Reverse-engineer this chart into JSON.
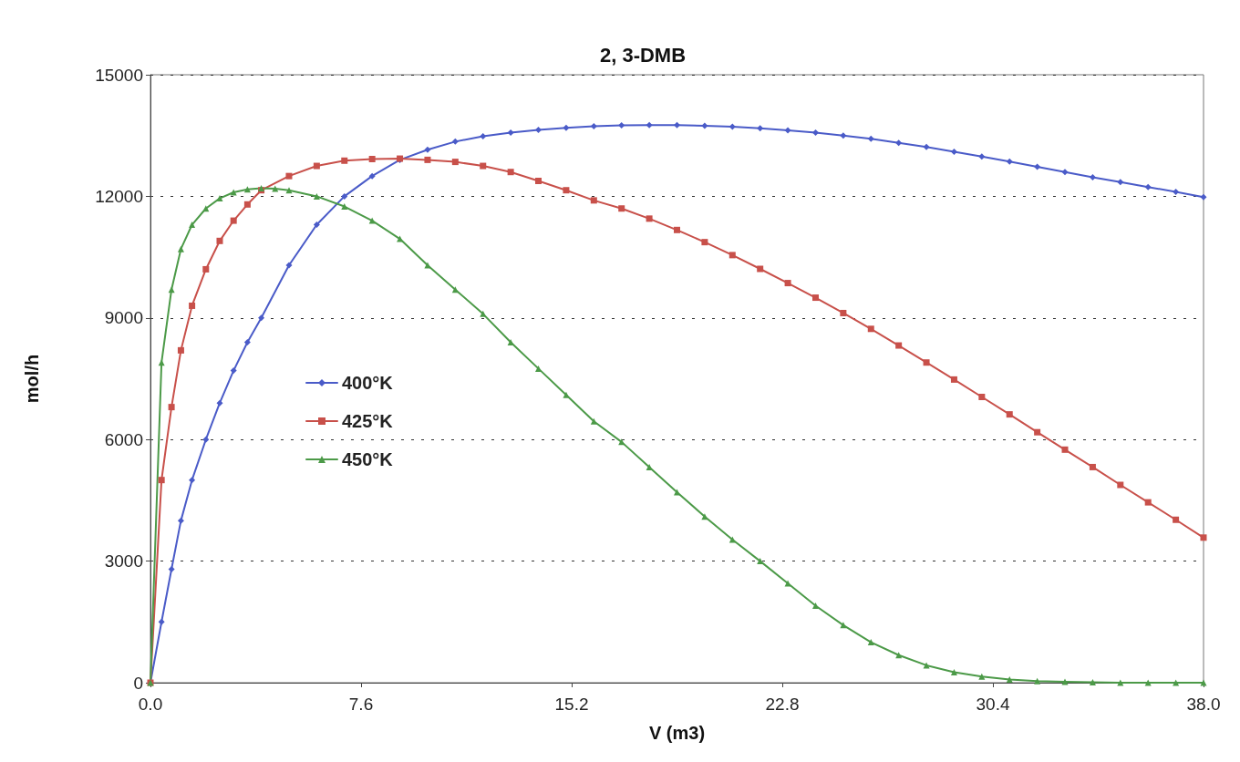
{
  "chart_data": {
    "type": "line",
    "title": "2, 3-DMB",
    "xlabel": "V (m3)",
    "ylabel": "mol/h",
    "xlim": [
      0,
      38
    ],
    "xticks": [
      {
        "value": 0,
        "label": "0.0"
      },
      7.6,
      15.2,
      22.8,
      30.4,
      {
        "value": 38,
        "label": "38.0"
      }
    ],
    "ylim": [
      0,
      15000
    ],
    "yticks": [
      0,
      3000,
      6000,
      9000,
      12000,
      15000
    ],
    "grid": "y",
    "legend": "left",
    "line_style": "solid",
    "series": [
      {
        "name": "400°K",
        "color": "#4a5bc8",
        "marker": "diamond",
        "x": [
          0,
          0.4,
          0.76,
          1.1,
          1.5,
          2,
          2.5,
          3,
          3.5,
          4,
          5,
          6,
          7,
          8,
          9,
          10,
          11,
          12,
          13,
          14,
          15,
          16,
          17,
          18,
          19,
          20,
          21,
          22,
          23,
          24,
          25,
          26,
          27,
          28,
          29,
          30,
          31,
          32,
          33,
          34,
          35,
          36,
          37,
          38
        ],
        "values": [
          0,
          1500,
          2800,
          4000,
          5000,
          6000,
          6900,
          7700,
          8400,
          9000,
          10300,
          11300,
          12000,
          12500,
          12900,
          13150,
          13350,
          13480,
          13570,
          13640,
          13690,
          13730,
          13750,
          13760,
          13760,
          13740,
          13720,
          13680,
          13630,
          13570,
          13500,
          13420,
          13320,
          13220,
          13100,
          12980,
          12860,
          12730,
          12600,
          12470,
          12350,
          12230,
          12110,
          11980
        ]
      },
      {
        "name": "425°K",
        "color": "#c8504a",
        "marker": "square",
        "x": [
          0,
          0.4,
          0.76,
          1.1,
          1.5,
          2,
          2.5,
          3,
          3.5,
          4,
          5,
          6,
          7,
          8,
          9,
          10,
          11,
          12,
          13,
          14,
          15,
          16,
          17,
          18,
          19,
          20,
          21,
          22,
          23,
          24,
          25,
          26,
          27,
          28,
          29,
          30,
          31,
          32,
          33,
          34,
          35,
          36,
          37,
          38
        ],
        "values": [
          0,
          5000,
          6800,
          8200,
          9300,
          10200,
          10900,
          11400,
          11800,
          12150,
          12500,
          12750,
          12880,
          12920,
          12930,
          12900,
          12850,
          12750,
          12600,
          12380,
          12150,
          11900,
          11700,
          11450,
          11170,
          10870,
          10550,
          10210,
          9860,
          9500,
          9120,
          8730,
          8320,
          7900,
          7480,
          7050,
          6620,
          6180,
          5750,
          5320,
          4880,
          4450,
          4020,
          3580
        ]
      },
      {
        "name": "450°K",
        "color": "#4c9a48",
        "marker": "triangle",
        "x": [
          0,
          0.4,
          0.76,
          1.1,
          1.5,
          2,
          2.5,
          3,
          3.5,
          4,
          4.5,
          5,
          6,
          7,
          8,
          9,
          10,
          11,
          12,
          13,
          14,
          15,
          16,
          17,
          18,
          19,
          20,
          21,
          22,
          23,
          24,
          25,
          26,
          27,
          28,
          29,
          30,
          31,
          32,
          33,
          34,
          35,
          36,
          37,
          38
        ],
        "values": [
          0,
          7900,
          9700,
          10700,
          11300,
          11700,
          11950,
          12100,
          12170,
          12200,
          12190,
          12150,
          12000,
          11750,
          11400,
          10950,
          10300,
          9700,
          9100,
          8400,
          7750,
          7100,
          6450,
          5940,
          5320,
          4700,
          4100,
          3530,
          3000,
          2450,
          1900,
          1420,
          1000,
          680,
          430,
          260,
          150,
          80,
          40,
          20,
          10,
          0,
          0,
          0,
          0
        ]
      }
    ]
  }
}
